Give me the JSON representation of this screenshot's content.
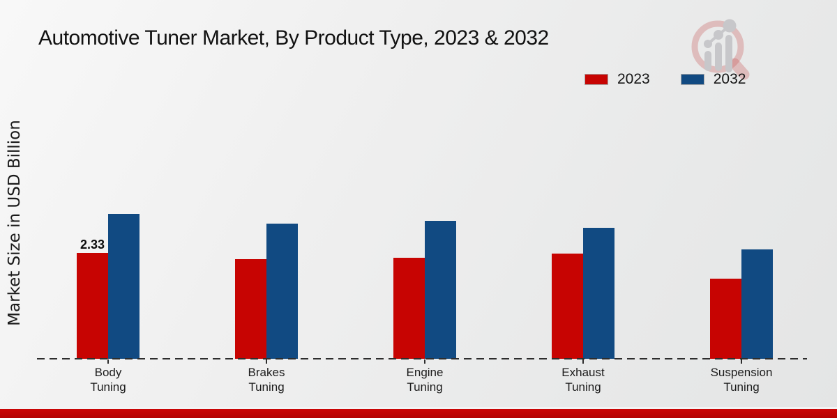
{
  "title": "Automotive Tuner Market, By Product Type, 2023 & 2032",
  "y_axis_label": "Market Size in USD Billion",
  "legend": {
    "items": [
      {
        "label": "2023",
        "color": "#c70402"
      },
      {
        "label": "2032",
        "color": "#114a82"
      }
    ]
  },
  "logo": {
    "name": "market-research-magnifier-logo"
  },
  "colors": {
    "series_2023": "#c70402",
    "series_2032": "#114a82",
    "footer_strip": "#c30505",
    "axis_dash": "#2d2d2d"
  },
  "chart_data": {
    "type": "bar",
    "title": "Automotive Tuner Market, By Product Type, 2023 & 2032",
    "xlabel": "",
    "ylabel": "Market Size in USD Billion",
    "categories": [
      "Body Tuning",
      "Brakes Tuning",
      "Engine Tuning",
      "Exhaust Tuning",
      "Suspension Tuning"
    ],
    "series": [
      {
        "name": "2023",
        "color": "#c70402",
        "values": [
          2.33,
          2.19,
          2.22,
          2.32,
          1.76
        ],
        "labels": [
          "2.33",
          "",
          "",
          "",
          ""
        ]
      },
      {
        "name": "2032",
        "color": "#114a82",
        "values": [
          3.19,
          2.98,
          3.04,
          2.89,
          2.41
        ],
        "labels": [
          "",
          "",
          "",
          "",
          ""
        ]
      }
    ],
    "ylim": [
      0,
      3.5
    ],
    "grid": false,
    "legend_position": "top-right",
    "baseline_style": "dashed"
  }
}
